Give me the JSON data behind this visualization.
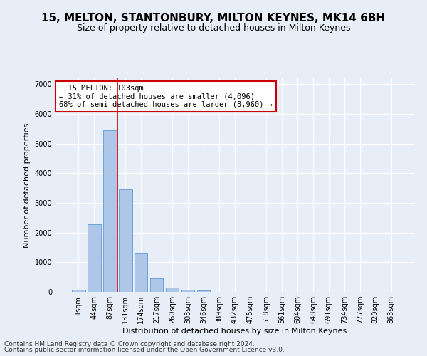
{
  "title": "15, MELTON, STANTONBURY, MILTON KEYNES, MK14 6BH",
  "subtitle": "Size of property relative to detached houses in Milton Keynes",
  "xlabel": "Distribution of detached houses by size in Milton Keynes",
  "ylabel": "Number of detached properties",
  "footer_line1": "Contains HM Land Registry data © Crown copyright and database right 2024.",
  "footer_line2": "Contains public sector information licensed under the Open Government Licence v3.0.",
  "annotation_line1": "  15 MELTON: 103sqm",
  "annotation_line2": "← 31% of detached houses are smaller (4,096)",
  "annotation_line3": "68% of semi-detached houses are larger (8,960) →",
  "bar_color": "#aec6e8",
  "bar_edge_color": "#5b9bd5",
  "vline_color": "#cc0000",
  "vline_x": 2.5,
  "categories": [
    "1sqm",
    "44sqm",
    "87sqm",
    "131sqm",
    "174sqm",
    "217sqm",
    "260sqm",
    "303sqm",
    "346sqm",
    "389sqm",
    "432sqm",
    "475sqm",
    "518sqm",
    "561sqm",
    "604sqm",
    "648sqm",
    "691sqm",
    "734sqm",
    "777sqm",
    "820sqm",
    "863sqm"
  ],
  "values": [
    80,
    2280,
    5460,
    3450,
    1300,
    460,
    155,
    80,
    45,
    0,
    0,
    0,
    0,
    0,
    0,
    0,
    0,
    0,
    0,
    0,
    0
  ],
  "ylim": [
    0,
    7200
  ],
  "yticks": [
    0,
    1000,
    2000,
    3000,
    4000,
    5000,
    6000,
    7000
  ],
  "background_color": "#e8eef7",
  "annotation_box_color": "#ffffff",
  "annotation_box_edge": "#cc0000",
  "title_fontsize": 11,
  "subtitle_fontsize": 9,
  "axis_label_fontsize": 8,
  "tick_fontsize": 7,
  "footer_fontsize": 6.5,
  "annotation_fontsize": 7.5
}
